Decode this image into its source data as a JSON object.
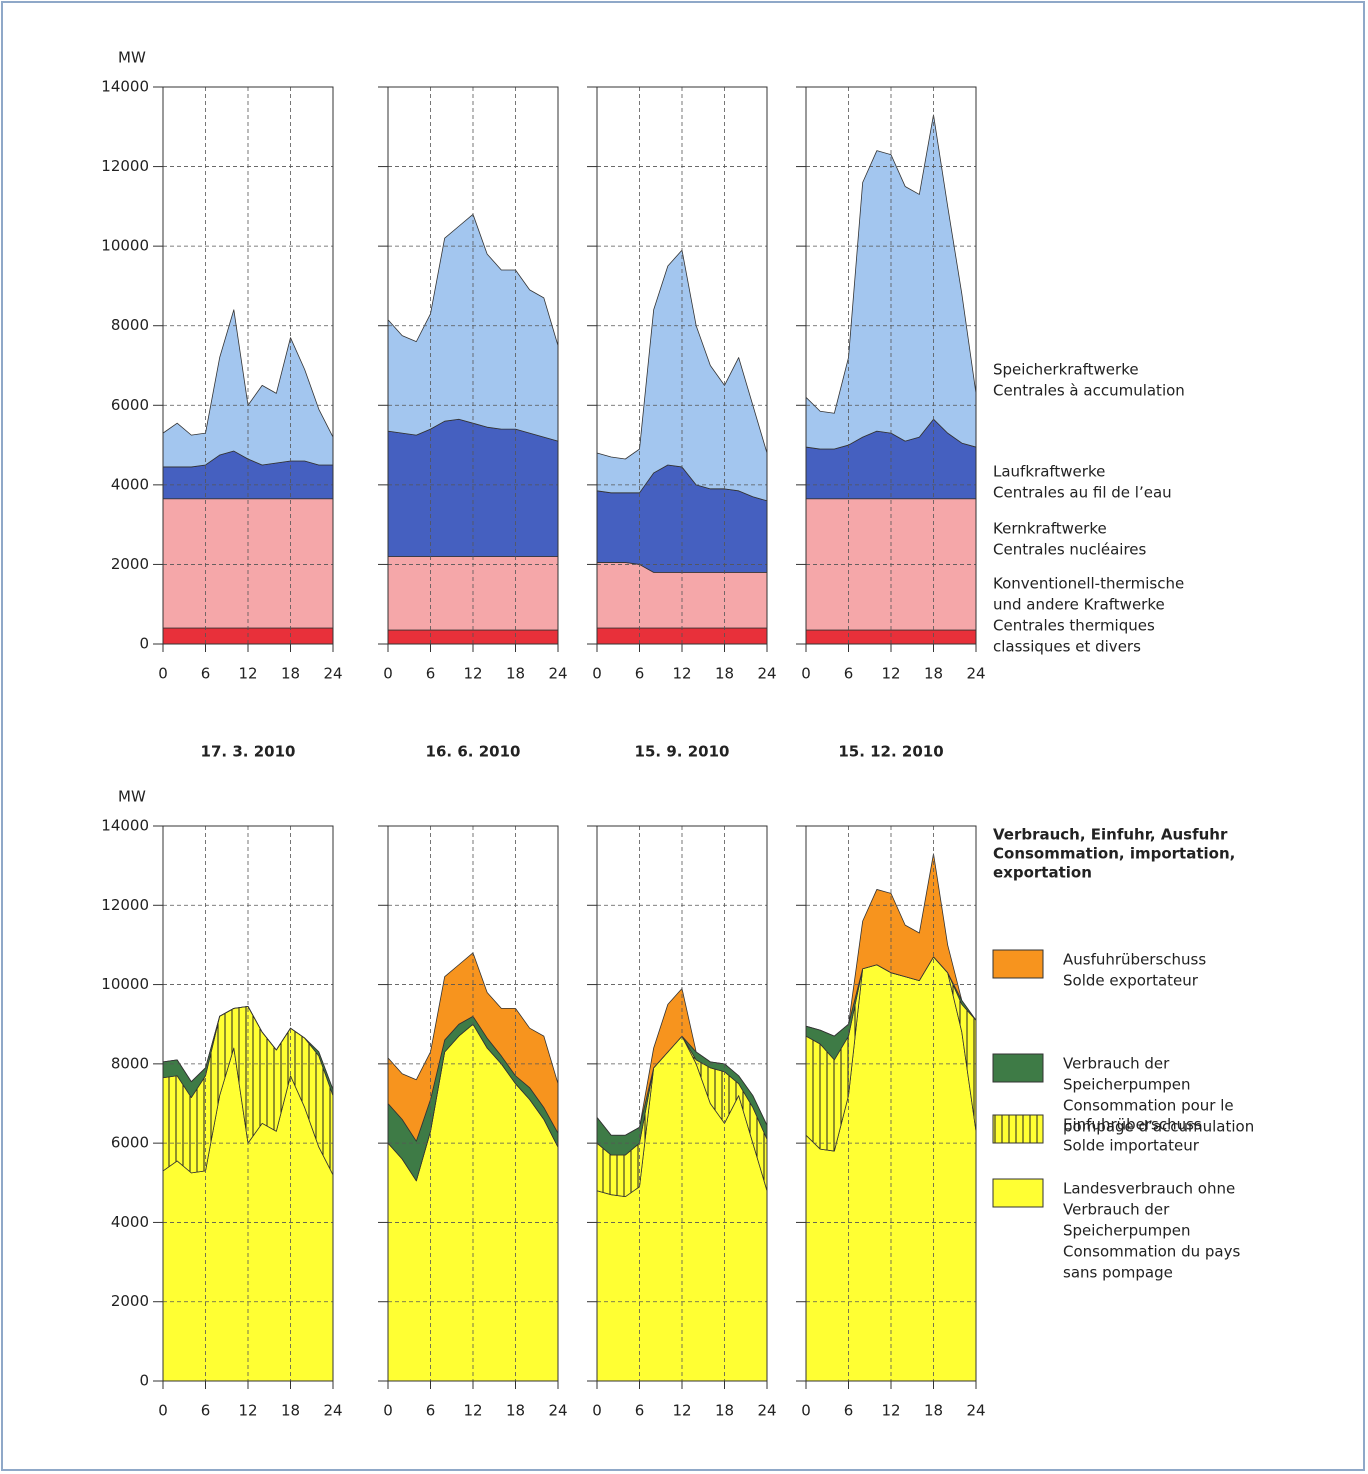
{
  "chart_data": [
    {
      "type": "area",
      "stacked": true,
      "y_label": "MW",
      "xlim": [
        0,
        24
      ],
      "xticks": [
        0,
        6,
        12,
        18,
        24
      ],
      "ylim": [
        0,
        14000
      ],
      "yticks": [
        0,
        2000,
        4000,
        6000,
        8000,
        10000,
        12000,
        14000
      ],
      "grid": true,
      "x": [
        0,
        2,
        4,
        6,
        8,
        10,
        12,
        14,
        16,
        18,
        20,
        22,
        24
      ],
      "series": [
        {
          "name": [
            "Konventionell-thermische",
            "und andere Kraftwerke",
            "Centrales thermiques",
            "classiques et divers"
          ],
          "color": "#e8303a"
        },
        {
          "name": [
            "Kernkraftwerke",
            "Centrales nucléaires"
          ],
          "color": "#f5a7a9"
        },
        {
          "name": [
            "Laufkraftwerke",
            "Centrales au fil de l’eau"
          ],
          "color": "#4560c0"
        },
        {
          "name": [
            "Speicherkraftwerke",
            "Centrales à accumulation"
          ],
          "color": "#a3c6ef"
        }
      ],
      "panels": [
        {
          "title": "17. 3. 2010",
          "values": [
            [
              400,
              400,
              400,
              400,
              400,
              400,
              400,
              400,
              400,
              400,
              400,
              400,
              400
            ],
            [
              3250,
              3250,
              3250,
              3250,
              3250,
              3250,
              3250,
              3250,
              3250,
              3250,
              3250,
              3250,
              3250
            ],
            [
              800,
              800,
              800,
              850,
              1100,
              1200,
              1000,
              850,
              900,
              950,
              950,
              850,
              850
            ],
            [
              850,
              1100,
              800,
              800,
              2450,
              3550,
              1350,
              2000,
              1750,
              3100,
              2300,
              1400,
              700
            ]
          ]
        },
        {
          "title": "16. 6. 2010",
          "values": [
            [
              350,
              350,
              350,
              350,
              350,
              350,
              350,
              350,
              350,
              350,
              350,
              350,
              350
            ],
            [
              1850,
              1850,
              1850,
              1850,
              1850,
              1850,
              1850,
              1850,
              1850,
              1850,
              1850,
              1850,
              1850
            ],
            [
              3150,
              3100,
              3050,
              3200,
              3400,
              3450,
              3350,
              3250,
              3200,
              3200,
              3100,
              3000,
              2900
            ],
            [
              2800,
              2450,
              2350,
              2900,
              4600,
              4850,
              5250,
              4350,
              4000,
              4000,
              3600,
              3500,
              2400
            ]
          ]
        },
        {
          "title": "15. 9. 2010",
          "values": [
            [
              400,
              400,
              400,
              400,
              400,
              400,
              400,
              400,
              400,
              400,
              400,
              400,
              400
            ],
            [
              1650,
              1650,
              1650,
              1600,
              1400,
              1400,
              1400,
              1400,
              1400,
              1400,
              1400,
              1400,
              1400
            ],
            [
              1800,
              1750,
              1750,
              1800,
              2500,
              2700,
              2650,
              2200,
              2100,
              2100,
              2050,
              1900,
              1800
            ],
            [
              950,
              900,
              850,
              1100,
              4100,
              5000,
              5450,
              4000,
              3100,
              2600,
              3350,
              2300,
              1200
            ]
          ]
        },
        {
          "title": "15. 12. 2010",
          "values": [
            [
              350,
              350,
              350,
              350,
              350,
              350,
              350,
              350,
              350,
              350,
              350,
              350,
              350
            ],
            [
              3300,
              3300,
              3300,
              3300,
              3300,
              3300,
              3300,
              3300,
              3300,
              3300,
              3300,
              3300,
              3300
            ],
            [
              1300,
              1250,
              1250,
              1350,
              1550,
              1700,
              1650,
              1450,
              1550,
              2000,
              1650,
              1400,
              1300
            ],
            [
              1250,
              950,
              900,
              2200,
              6400,
              7050,
              7000,
              6400,
              6100,
              7650,
              5700,
              3750,
              1350
            ]
          ]
        }
      ]
    },
    {
      "type": "area",
      "stacked": true,
      "y_label": "MW",
      "xlim": [
        0,
        24
      ],
      "xticks": [
        0,
        6,
        12,
        18,
        24
      ],
      "ylim": [
        0,
        14000
      ],
      "yticks": [
        0,
        2000,
        4000,
        6000,
        8000,
        10000,
        12000,
        14000
      ],
      "grid": true,
      "legend_title": [
        "Verbrauch, Einfuhr, Ausfuhr",
        "Consommation, importation,",
        "exportation"
      ],
      "x": [
        0,
        2,
        4,
        6,
        8,
        10,
        12,
        14,
        16,
        18,
        20,
        22,
        24
      ],
      "series": [
        {
          "name": [
            "Landesverbrauch ohne",
            "Verbrauch der",
            "Speicherpumpen",
            "Consommation du pays",
            "sans pompage"
          ],
          "color": "#ffff33"
        },
        {
          "name": [
            "Einfuhrüberschuss",
            "Solde importateur"
          ],
          "color": "#ffff33",
          "hatch": true
        },
        {
          "name": [
            "Verbrauch der",
            "Speicherpumpen",
            "Consommation pour le",
            "pompage d’accumulation"
          ],
          "color": "#3e7b46"
        },
        {
          "name": [
            "Ausfuhrüberschuss",
            "Solde exportateur"
          ],
          "color": "#f7941e"
        }
      ],
      "panels": [
        {
          "values": [
            [
              5300,
              5550,
              5250,
              5300,
              7200,
              8400,
              6000,
              6500,
              6300,
              7700,
              6900,
              5900,
              5200
            ],
            [
              2350,
              2150,
              1900,
              2400,
              2000,
              1000,
              3450,
              2300,
              2050,
              1200,
              1750,
              2300,
              2000
            ],
            [
              400,
              400,
              400,
              200,
              0,
              0,
              0,
              0,
              0,
              0,
              0,
              100,
              150
            ],
            [
              0,
              0,
              0,
              0,
              0,
              0,
              0,
              0,
              0,
              0,
              0,
              0,
              0
            ]
          ]
        },
        {
          "values": [
            [
              6000,
              5600,
              5050,
              6300,
              8300,
              8700,
              9000,
              8400,
              8000,
              7500,
              7100,
              6600,
              5900
            ],
            [
              0,
              0,
              0,
              0,
              0,
              0,
              0,
              0,
              0,
              0,
              0,
              0,
              0
            ],
            [
              1000,
              1000,
              1000,
              800,
              300,
              300,
              200,
              250,
              200,
              200,
              300,
              300,
              350
            ],
            [
              1150,
              1150,
              1550,
              1200,
              1600,
              1500,
              1600,
              1150,
              1200,
              1700,
              1500,
              1800,
              1250
            ]
          ]
        },
        {
          "values": [
            [
              4800,
              4700,
              4650,
              4900,
              7900,
              8300,
              8700,
              8000,
              7000,
              6500,
              7200,
              6000,
              4800
            ],
            [
              1200,
              1000,
              1050,
              1100,
              0,
              0,
              0,
              100,
              900,
              1300,
              300,
              900,
              1300
            ],
            [
              650,
              500,
              500,
              400,
              0,
              0,
              0,
              200,
              150,
              200,
              200,
              300,
              350
            ],
            [
              0,
              0,
              0,
              0,
              500,
              1200,
              1200,
              0,
              0,
              0,
              0,
              0,
              0
            ]
          ]
        },
        {
          "values": [
            [
              6200,
              5850,
              5800,
              7200,
              10400,
              10500,
              10300,
              10200,
              10100,
              10700,
              10300,
              8800,
              6300
            ],
            [
              2500,
              2650,
              2300,
              1500,
              0,
              0,
              0,
              0,
              0,
              0,
              0,
              700,
              2800
            ],
            [
              250,
              350,
              600,
              300,
              0,
              0,
              0,
              0,
              0,
              0,
              0,
              100,
              0
            ],
            [
              0,
              0,
              0,
              0,
              1200,
              1900,
              2000,
              1300,
              1200,
              2600,
              700,
              0,
              0
            ]
          ]
        }
      ]
    }
  ]
}
